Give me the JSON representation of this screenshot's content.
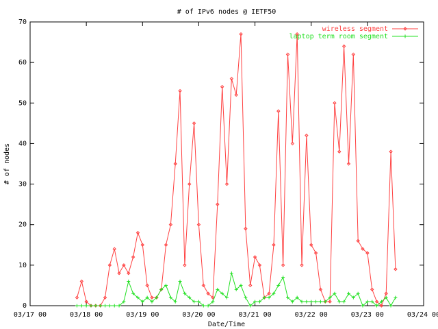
{
  "chart_data": {
    "type": "line",
    "title": "# of IPv6 nodes @ IETF50",
    "xlabel": "Date/Time",
    "ylabel": "# of nodes",
    "x": [
      "03/17 20",
      "03/17 22",
      "03/18 00",
      "03/18 02",
      "03/18 04",
      "03/18 06",
      "03/18 08",
      "03/18 10",
      "03/18 12",
      "03/18 14",
      "03/18 16",
      "03/18 18",
      "03/18 20",
      "03/18 22",
      "03/19 00",
      "03/19 02",
      "03/19 04",
      "03/19 06",
      "03/19 08",
      "03/19 10",
      "03/19 12",
      "03/19 14",
      "03/19 16",
      "03/19 18",
      "03/19 20",
      "03/19 22",
      "03/20 00",
      "03/20 02",
      "03/20 04",
      "03/20 06",
      "03/20 08",
      "03/20 10",
      "03/20 12",
      "03/20 14",
      "03/20 16",
      "03/20 18",
      "03/20 20",
      "03/20 22",
      "03/21 00",
      "03/21 02",
      "03/21 04",
      "03/21 06",
      "03/21 08",
      "03/21 10",
      "03/21 12",
      "03/21 14",
      "03/21 16",
      "03/21 18",
      "03/21 20",
      "03/21 22",
      "03/22 00",
      "03/22 02",
      "03/22 04",
      "03/22 06",
      "03/22 08",
      "03/22 10",
      "03/22 12",
      "03/22 14",
      "03/22 16",
      "03/22 18",
      "03/22 20",
      "03/22 22",
      "03/23 00",
      "03/23 02",
      "03/23 04",
      "03/23 06",
      "03/23 08",
      "03/23 10",
      "03/23 12"
    ],
    "series": [
      {
        "name": "wireless segment",
        "color": "#ff4040",
        "values": [
          2,
          6,
          1,
          0,
          0,
          0,
          2,
          10,
          14,
          8,
          10,
          8,
          12,
          18,
          15,
          5,
          2,
          2,
          4,
          15,
          20,
          35,
          53,
          10,
          30,
          45,
          20,
          5,
          3,
          2,
          25,
          54,
          30,
          56,
          52,
          67,
          19,
          5,
          12,
          10,
          2,
          3,
          15,
          48,
          10,
          62,
          40,
          67,
          10,
          42,
          15,
          13,
          4,
          1,
          1,
          50,
          38,
          64,
          35,
          62,
          16,
          14,
          13,
          4,
          1,
          0,
          3,
          38,
          9
        ]
      },
      {
        "name": "laptop term room segment",
        "color": "#20e020",
        "values": [
          0,
          0,
          0,
          0,
          0,
          0,
          0,
          0,
          0,
          0,
          1,
          6,
          3,
          2,
          1,
          2,
          1,
          2,
          4,
          5,
          2,
          1,
          6,
          3,
          2,
          1,
          1,
          0,
          0,
          1,
          4,
          3,
          2,
          8,
          4,
          5,
          2,
          0,
          1,
          1,
          2,
          2,
          3,
          5,
          7,
          2,
          1,
          2,
          1,
          1,
          1,
          1,
          1,
          1,
          2,
          3,
          1,
          1,
          3,
          2,
          3,
          0,
          1,
          1,
          0,
          1,
          2,
          0,
          2
        ]
      }
    ],
    "xlim": [
      "03/17 00",
      "03/24 00"
    ],
    "xticks": [
      "03/17 00",
      "03/18 00",
      "03/19 00",
      "03/20 00",
      "03/21 00",
      "03/22 00",
      "03/23 00",
      "03/24 00"
    ],
    "ylim": [
      0,
      70
    ],
    "yticks": [
      0,
      10,
      20,
      30,
      40,
      50,
      60,
      70
    ],
    "legend": "top-right"
  }
}
